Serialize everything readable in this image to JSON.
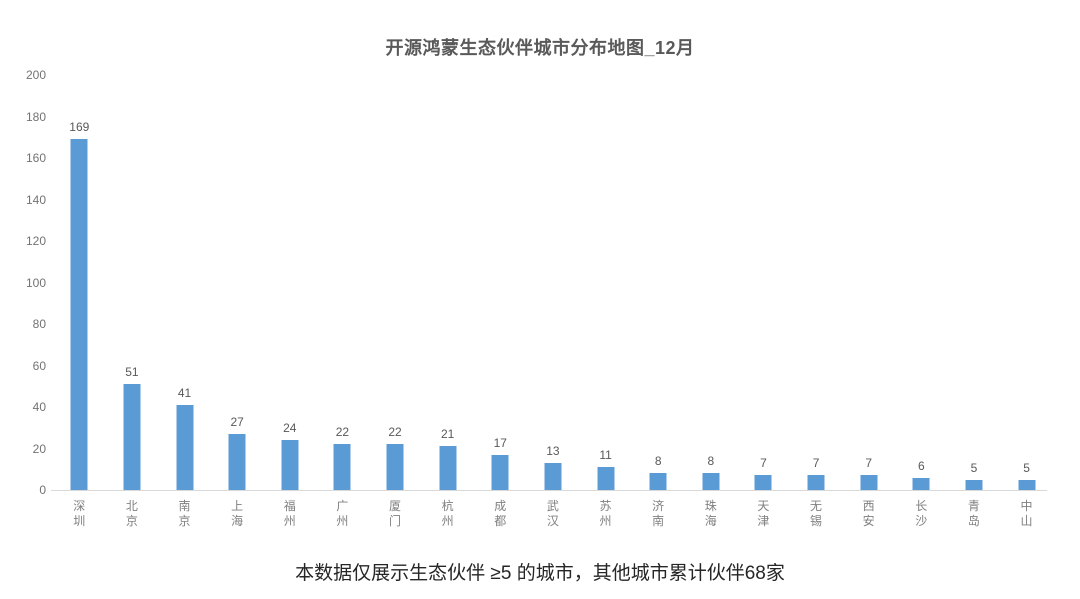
{
  "title": "开源鸿蒙生态伙伴城市分布地图_12月",
  "footer": "本数据仅展示生态伙伴 ≥5 的城市，其他城市累计伙伴68家",
  "colors": {
    "bar": "#5B9BD5",
    "axis_line": "#D9D9D9",
    "title_text": "#595959",
    "value_label_text": "#595959",
    "y_tick_text": "#737373",
    "x_label_text": "#808080",
    "footer_text": "#262626"
  },
  "chart_data": {
    "type": "bar",
    "title": "开源鸿蒙生态伙伴城市分布地图_12月",
    "categories": [
      "深圳",
      "北京",
      "南京",
      "上海",
      "福州",
      "广州",
      "厦门",
      "杭州",
      "成都",
      "武汉",
      "苏州",
      "济南",
      "珠海",
      "天津",
      "无锡",
      "西安",
      "长沙",
      "青岛",
      "中山"
    ],
    "values": [
      169,
      51,
      41,
      27,
      24,
      22,
      22,
      21,
      17,
      13,
      11,
      8,
      8,
      7,
      7,
      7,
      6,
      5,
      5
    ],
    "xlabel": "",
    "ylabel": "",
    "ylim": [
      0,
      200
    ],
    "ytick_interval": 20,
    "grid": false,
    "legend": "none",
    "data_labels": true,
    "annotation": "本数据仅展示生态伙伴 ≥5 的城市，其他城市累计伙伴68家"
  }
}
